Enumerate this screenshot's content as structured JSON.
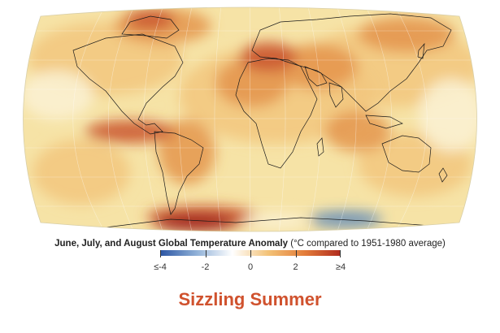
{
  "map": {
    "projection": "Robinson",
    "subject": "global temperature anomaly",
    "colors": {
      "ocean_base": "#f6e3a6",
      "warm_light": "#f2c77e",
      "warm_mid": "#e39149",
      "warm_strong": "#c9512c",
      "warm_max": "#9e1e1a",
      "cool": "#4f80bb",
      "coast": "#1a1a1a"
    }
  },
  "legend": {
    "caption_bold": "June, July, and August Global Temperature Anomaly",
    "caption_normal": " (°C compared to 1951-1980 average)",
    "scale": {
      "min": -4,
      "max": 4,
      "stops": [
        "#2b55a3",
        "#8fb0d7",
        "#ffffff",
        "#f3c277",
        "#e37d3a",
        "#b02a1d"
      ]
    },
    "ticks": [
      {
        "value": -4,
        "label": "≤-4"
      },
      {
        "value": -2,
        "label": "-2"
      },
      {
        "value": 0,
        "label": "0"
      },
      {
        "value": 2,
        "label": "2"
      },
      {
        "value": 4,
        "label": "≥4"
      }
    ]
  },
  "headline": "Sizzling Summer"
}
